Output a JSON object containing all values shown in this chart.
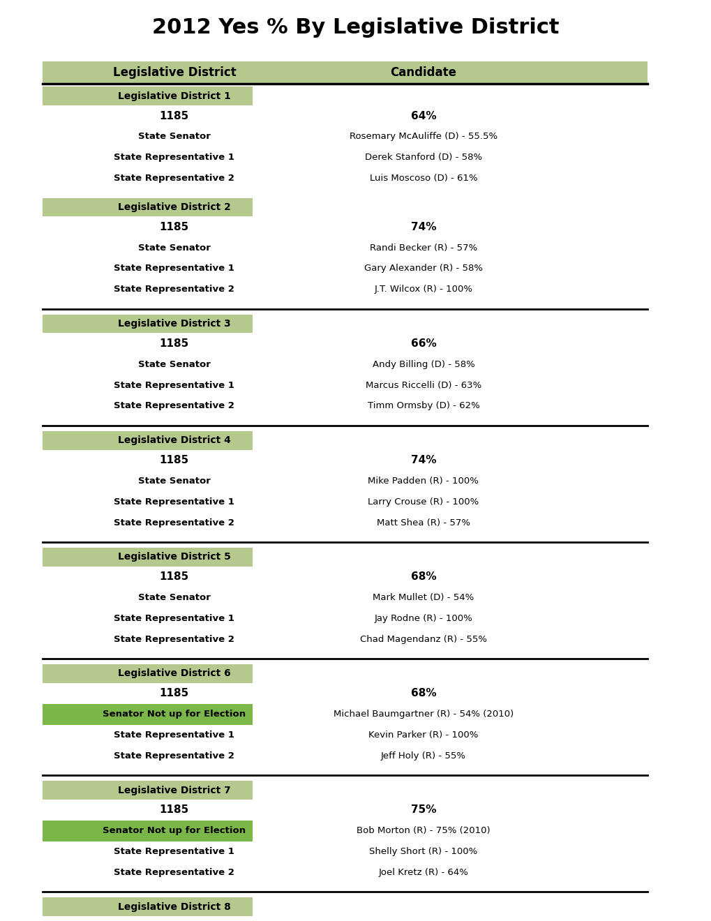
{
  "title": "2012 Yes % By Legislative District",
  "title_fontsize": 22,
  "header_bg": "#b5c98e",
  "district_bg": "#b5c98e",
  "senator_not_up_bg": "#7ab648",
  "text_color": "#000000",
  "districts": [
    {
      "name": "Legislative District 1",
      "ballot": "1185",
      "ballot_pct": "64%",
      "rows": [
        {
          "label": "State Senator",
          "candidate": "Rosemary McAuliffe (D) - 55.5%",
          "senator_not_up": false
        },
        {
          "label": "State Representative 1",
          "candidate": "Derek Stanford (D) - 58%",
          "senator_not_up": false
        },
        {
          "label": "State Representative 2",
          "candidate": "Luis Moscoso (D) - 61%",
          "senator_not_up": false
        }
      ],
      "has_bottom_line": false
    },
    {
      "name": "Legislative District 2",
      "ballot": "1185",
      "ballot_pct": "74%",
      "rows": [
        {
          "label": "State Senator",
          "candidate": "Randi Becker (R) - 57%",
          "senator_not_up": false
        },
        {
          "label": "State Representative 1",
          "candidate": "Gary Alexander (R) - 58%",
          "senator_not_up": false
        },
        {
          "label": "State Representative 2",
          "candidate": "J.T. Wilcox (R) - 100%",
          "senator_not_up": false
        }
      ],
      "has_bottom_line": true
    },
    {
      "name": "Legislative District 3",
      "ballot": "1185",
      "ballot_pct": "66%",
      "rows": [
        {
          "label": "State Senator",
          "candidate": "Andy Billing (D) - 58%",
          "senator_not_up": false
        },
        {
          "label": "State Representative 1",
          "candidate": "Marcus Riccelli (D) - 63%",
          "senator_not_up": false
        },
        {
          "label": "State Representative 2",
          "candidate": "Timm Ormsby (D) - 62%",
          "senator_not_up": false
        }
      ],
      "has_bottom_line": true
    },
    {
      "name": "Legislative District 4",
      "ballot": "1185",
      "ballot_pct": "74%",
      "rows": [
        {
          "label": "State Senator",
          "candidate": "Mike Padden (R) - 100%",
          "senator_not_up": false
        },
        {
          "label": "State Representative 1",
          "candidate": "Larry Crouse (R) - 100%",
          "senator_not_up": false
        },
        {
          "label": "State Representative 2",
          "candidate": "Matt Shea (R) - 57%",
          "senator_not_up": false
        }
      ],
      "has_bottom_line": true
    },
    {
      "name": "Legislative District 5",
      "ballot": "1185",
      "ballot_pct": "68%",
      "rows": [
        {
          "label": "State Senator",
          "candidate": "Mark Mullet (D) - 54%",
          "senator_not_up": false
        },
        {
          "label": "State Representative 1",
          "candidate": "Jay Rodne (R) - 100%",
          "senator_not_up": false
        },
        {
          "label": "State Representative 2",
          "candidate": "Chad Magendanz (R) - 55%",
          "senator_not_up": false
        }
      ],
      "has_bottom_line": true
    },
    {
      "name": "Legislative District 6",
      "ballot": "1185",
      "ballot_pct": "68%",
      "rows": [
        {
          "label": "Senator Not up for Election",
          "candidate": "Michael Baumgartner (R) - 54% (2010)",
          "senator_not_up": true
        },
        {
          "label": "State Representative 1",
          "candidate": "Kevin Parker (R) - 100%",
          "senator_not_up": false
        },
        {
          "label": "State Representative 2",
          "candidate": "Jeff Holy (R) - 55%",
          "senator_not_up": false
        }
      ],
      "has_bottom_line": true
    },
    {
      "name": "Legislative District 7",
      "ballot": "1185",
      "ballot_pct": "75%",
      "rows": [
        {
          "label": "Senator Not up for Election",
          "candidate": "Bob Morton (R) - 75% (2010)",
          "senator_not_up": true
        },
        {
          "label": "State Representative 1",
          "candidate": "Shelly Short (R) - 100%",
          "senator_not_up": false
        },
        {
          "label": "State Representative 2",
          "candidate": "Joel Kretz (R) - 64%",
          "senator_not_up": false
        }
      ],
      "has_bottom_line": true
    },
    {
      "name": "Legislative District 8",
      "ballot": null,
      "ballot_pct": null,
      "rows": [],
      "has_bottom_line": false
    }
  ]
}
